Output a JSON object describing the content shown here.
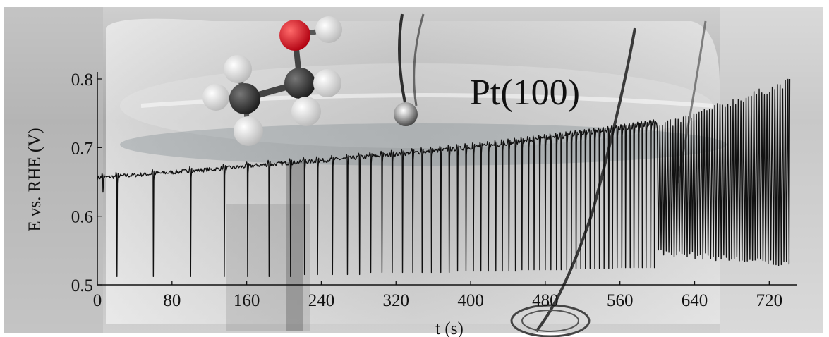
{
  "chart_data": {
    "type": "line",
    "title": "",
    "annotation": "Pt(100)",
    "xlabel": "t (s)",
    "ylabel": "E vs. RHE (V)",
    "xlim": [
      0,
      750
    ],
    "ylim": [
      0.5,
      0.8
    ],
    "xticks": [
      0,
      80,
      160,
      240,
      320,
      400,
      480,
      560,
      640,
      720
    ],
    "yticks": [
      0.5,
      0.6,
      0.7,
      0.8
    ],
    "grid": false,
    "legend": "none",
    "line_color": "#111111",
    "series": [
      {
        "baseline_x": [
          0,
          60,
          120,
          180,
          240,
          300,
          360,
          420,
          480,
          540,
          600
        ],
        "baseline_y": [
          0.656,
          0.662,
          0.668,
          0.675,
          0.681,
          0.688,
          0.695,
          0.703,
          0.713,
          0.723,
          0.735
        ],
        "spike_x": [
          6,
          21,
          60,
          100,
          136,
          161,
          184,
          207,
          222,
          236,
          252,
          268,
          281,
          293,
          305,
          316,
          327,
          338,
          348,
          358,
          368,
          377,
          386,
          395,
          403,
          411,
          419,
          427,
          434,
          441,
          448,
          455,
          462,
          468,
          474,
          480,
          486,
          492,
          497,
          503,
          508,
          513,
          518,
          523,
          528,
          533,
          538,
          543,
          548,
          552,
          557,
          562,
          566,
          571,
          575,
          580,
          584,
          588,
          593,
          597
        ],
        "spike_min": [
          0.635,
          0.512,
          0.512,
          0.512,
          0.512,
          0.512,
          0.512,
          0.512,
          0.515,
          0.515,
          0.515,
          0.515,
          0.515,
          0.518,
          0.518,
          0.518,
          0.518,
          0.518,
          0.518,
          0.518,
          0.518,
          0.518,
          0.52,
          0.52,
          0.52,
          0.52,
          0.52,
          0.52,
          0.52,
          0.52,
          0.52,
          0.522,
          0.522,
          0.522,
          0.522,
          0.522,
          0.522,
          0.522,
          0.522,
          0.522,
          0.524,
          0.524,
          0.524,
          0.524,
          0.524,
          0.524,
          0.524,
          0.524,
          0.524,
          0.524,
          0.525,
          0.525,
          0.525,
          0.525,
          0.525,
          0.525,
          0.525,
          0.525,
          0.525,
          0.525
        ],
        "osc_start": 600,
        "osc_end": 742,
        "osc_period": 2.8,
        "osc_min_start": 0.548,
        "osc_min_end": 0.53,
        "osc_max_start": 0.728,
        "osc_max_end": 0.795,
        "final_peak": [
          742,
          0.8
        ]
      }
    ]
  },
  "background": {
    "description_colors": {
      "dark": "#3a3a3a",
      "light": "#d9d9d9",
      "electrode_glass": "#9aa4a8"
    }
  },
  "molecule": {
    "carbon_color": "#333333",
    "oxygen_color": "#e0101a",
    "hydrogen_color": "#f2f2f2"
  }
}
